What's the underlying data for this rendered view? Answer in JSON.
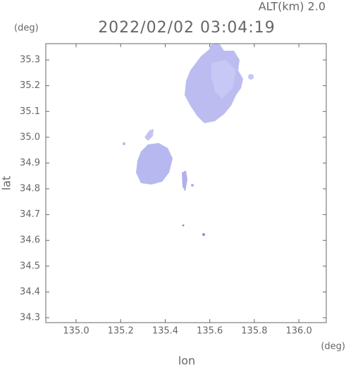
{
  "chart_data": {
    "type": "map",
    "title": "2022/02/02 03:04:19",
    "subtitle": "ALT(km) 2.0",
    "x_label": "lon",
    "y_label": "lat",
    "x_unit": "(deg)",
    "y_unit": "(deg)",
    "xlim": [
      134.864,
      136.123
    ],
    "ylim": [
      34.281,
      35.363
    ],
    "xticks": [
      {
        "value": 135.0,
        "label": "135.0"
      },
      135.2,
      135.4,
      135.6,
      135.8,
      {
        "value": 136.0,
        "label": "136.0"
      }
    ],
    "yticks": [
      34.3,
      34.4,
      34.5,
      34.6,
      34.7,
      34.8,
      34.9,
      {
        "value": 35.0,
        "label": "35.0"
      },
      35.1,
      35.2,
      35.3
    ]
  }
}
